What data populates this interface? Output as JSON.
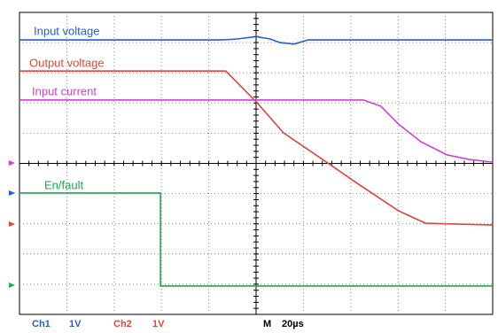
{
  "chart_data": {
    "type": "line",
    "xlim": [
      0,
      10
    ],
    "ylim": [
      0,
      10
    ],
    "grid": true,
    "series": [
      {
        "name": "Input voltage",
        "color": "#1f5fd6",
        "x": [
          0,
          4.3,
          4.6,
          5.0,
          5.3,
          5.5,
          5.8,
          6.1,
          10
        ],
        "values": [
          9.09,
          9.09,
          9.12,
          9.2,
          9.12,
          9.0,
          8.95,
          9.09,
          9.09
        ]
      },
      {
        "name": "Output voltage",
        "color": "#e0463a",
        "x": [
          0,
          4.36,
          5.02,
          5.58,
          6.52,
          7.08,
          8.01,
          8.58,
          10
        ],
        "values": [
          8.06,
          8.06,
          7.01,
          6.01,
          5.01,
          4.4,
          3.43,
          3.02,
          2.96
        ]
      },
      {
        "name": "Input current",
        "color": "#d23fd6",
        "x": [
          0,
          7.27,
          7.64,
          8.01,
          8.48,
          9.04,
          9.51,
          10
        ],
        "values": [
          7.1,
          7.1,
          6.89,
          6.3,
          5.72,
          5.28,
          5.13,
          5.04
        ]
      },
      {
        "name": "En/fault",
        "color": "#23a84a",
        "x": [
          0,
          2.98,
          2.98,
          10
        ],
        "values": [
          4.02,
          4.02,
          0.94,
          0.94
        ]
      }
    ],
    "channel_settings": [
      {
        "channel": "Ch1",
        "scale": "1V",
        "color": "#1f5fd6"
      },
      {
        "channel": "Ch2",
        "scale": "1V",
        "color": "#e0463a"
      }
    ],
    "timebase": {
      "label": "M",
      "value": "20µs"
    }
  }
}
